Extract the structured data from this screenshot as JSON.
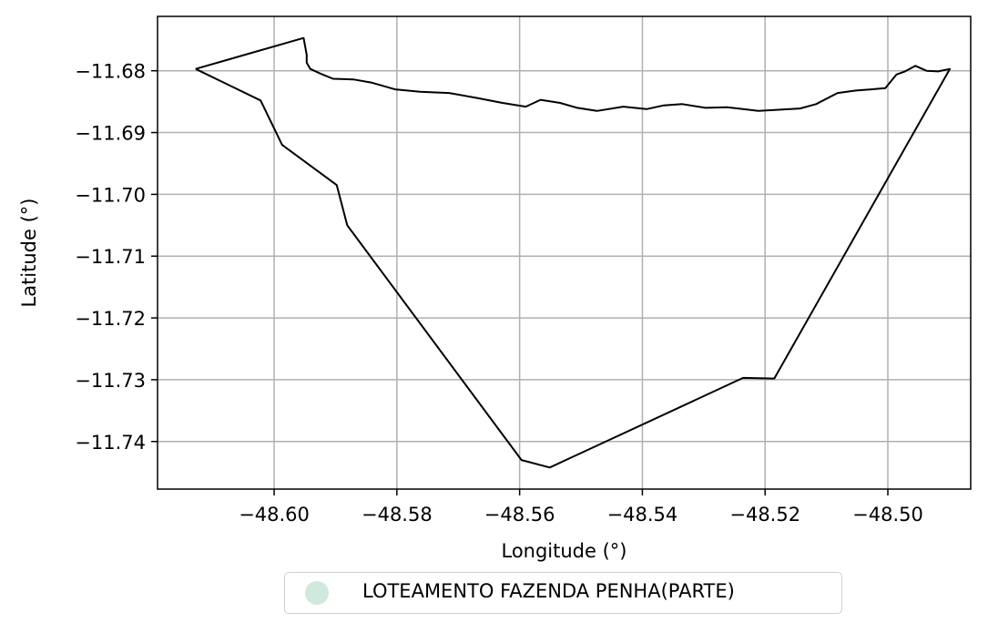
{
  "chart_data": {
    "type": "line",
    "title": "",
    "xlabel": "Longitude (°)",
    "ylabel": "Latitude (°)",
    "xlim": [
      -48.619,
      -48.4865
    ],
    "ylim": [
      -11.7477,
      -11.6712
    ],
    "xticks": [
      -48.6,
      -48.58,
      -48.56,
      -48.54,
      -48.52,
      -48.5
    ],
    "xtick_labels": [
      "−48.60",
      "−48.58",
      "−48.56",
      "−48.54",
      "−48.52",
      "−48.50"
    ],
    "yticks": [
      -11.68,
      -11.69,
      -11.7,
      -11.71,
      -11.72,
      -11.73,
      -11.74
    ],
    "ytick_labels": [
      "−11.68",
      "−11.69",
      "−11.70",
      "−11.71",
      "−11.72",
      "−11.73",
      "−11.74"
    ],
    "grid": true,
    "legend_position": "bottom-center",
    "series": [
      {
        "name": "LOTEAMENTO FAZENDA PENHA(PARTE)",
        "legend_color": "#cfe9dd",
        "line_color": "#000000",
        "x": [
          -48.6128,
          -48.6022,
          -48.5987,
          -48.5898,
          -48.5881,
          -48.5597,
          -48.5551,
          -48.5236,
          -48.5185,
          -48.4899,
          -48.4918,
          -48.4937,
          -48.4955,
          -48.4972,
          -48.4986,
          -48.5004,
          -48.5027,
          -48.5052,
          -48.5082,
          -48.5117,
          -48.5143,
          -48.5175,
          -48.5211,
          -48.5236,
          -48.5262,
          -48.5297,
          -48.5335,
          -48.5365,
          -48.5393,
          -48.5431,
          -48.5474,
          -48.5506,
          -48.5534,
          -48.5566,
          -48.559,
          -48.5628,
          -48.5669,
          -48.5715,
          -48.5762,
          -48.5803,
          -48.5842,
          -48.5871,
          -48.5904,
          -48.5926,
          -48.5941,
          -48.5947,
          -48.5947,
          -48.5952,
          -48.6128
        ],
        "y": [
          -11.6797,
          -11.6848,
          -11.692,
          -11.6985,
          -11.705,
          -11.743,
          -11.7442,
          -11.7297,
          -11.7298,
          -11.6797,
          -11.6801,
          -11.68,
          -11.6792,
          -11.6801,
          -11.6806,
          -11.6828,
          -11.683,
          -11.6832,
          -11.6836,
          -11.6854,
          -11.6861,
          -11.6863,
          -11.6865,
          -11.6862,
          -11.6859,
          -11.686,
          -11.6854,
          -11.6856,
          -11.6862,
          -11.6858,
          -11.6865,
          -11.686,
          -11.6852,
          -11.6847,
          -11.6858,
          -11.6852,
          -11.6844,
          -11.6836,
          -11.6834,
          -11.683,
          -11.6819,
          -11.6814,
          -11.6813,
          -11.6804,
          -11.6797,
          -11.6787,
          -11.6774,
          -11.6747,
          -11.6797
        ]
      }
    ]
  }
}
